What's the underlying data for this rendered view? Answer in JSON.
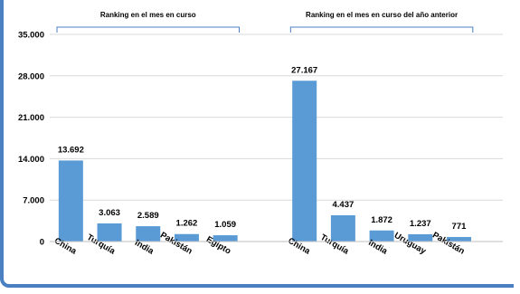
{
  "chart_data": {
    "type": "bar",
    "title": "",
    "xlabel": "",
    "ylabel": "",
    "ylim": [
      0,
      35000
    ],
    "yticks": [
      "0",
      "7.000",
      "14.000",
      "21.000",
      "28.000",
      "35.000"
    ],
    "ytick_values": [
      0,
      7000,
      14000,
      21000,
      28000,
      35000
    ],
    "grid": true,
    "bar_color": "#5b9bd5",
    "groups": [
      {
        "title": "Ranking en el mes en curso",
        "categories": [
          "China",
          "Turquía",
          "India",
          "Pakistán",
          "Egipto"
        ],
        "values": [
          13692,
          3063,
          2589,
          1262,
          1059
        ],
        "value_labels": [
          "13.692",
          "3.063",
          "2.589",
          "1.262",
          "1.059"
        ]
      },
      {
        "title": "Ranking en el mes en curso del año anterior",
        "categories": [
          "China",
          "Turquía",
          "India",
          "Uruguay",
          "Pakistán"
        ],
        "values": [
          27167,
          4437,
          1872,
          1237,
          771
        ],
        "value_labels": [
          "27.167",
          "4.437",
          "1.872",
          "1.237",
          "771"
        ]
      }
    ]
  }
}
